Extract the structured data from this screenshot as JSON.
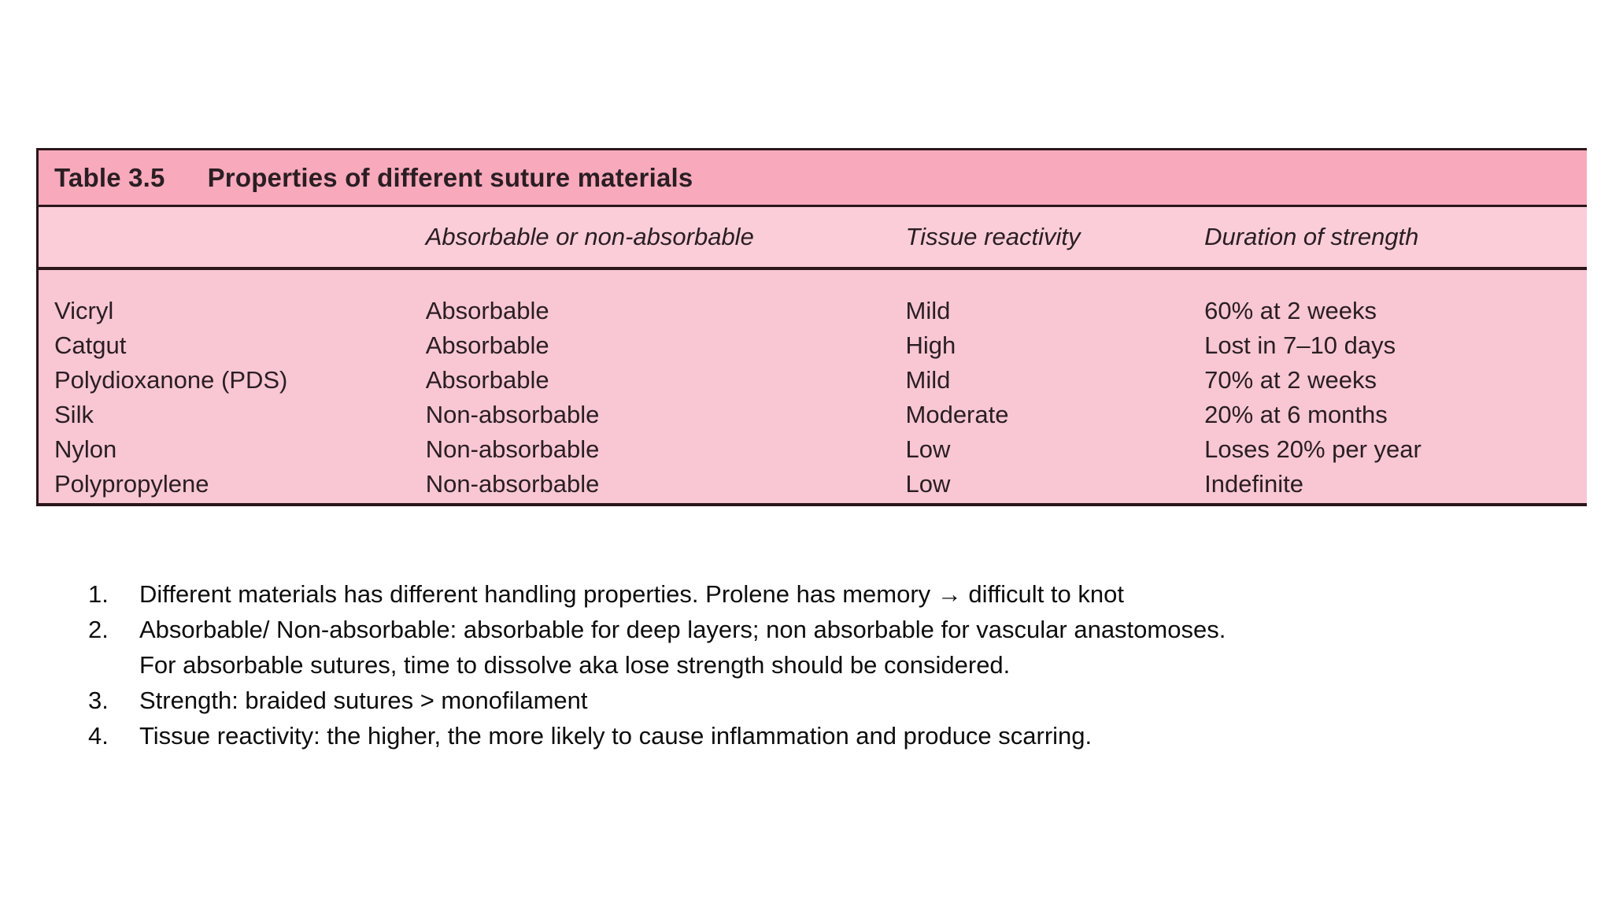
{
  "colors": {
    "title_band": "#f8a9bb",
    "header_band": "#facdd8",
    "body_band": "#f8c7d3",
    "table_border": "#2a161b",
    "table_text": "#2a1e23",
    "note_text": "#0d0d0d"
  },
  "table": {
    "title_label": "Table 3.5",
    "title_text": "Properties of different suture materials",
    "columns": {
      "material": "",
      "absorbable": "Absorbable or non-absorbable",
      "reactivity": "Tissue reactivity",
      "duration": "Duration of strength"
    },
    "rows": [
      {
        "material": "Vicryl",
        "absorbable": "Absorbable",
        "reactivity": "Mild",
        "duration": "60% at 2 weeks"
      },
      {
        "material": "Catgut",
        "absorbable": "Absorbable",
        "reactivity": "High",
        "duration": "Lost in 7–10 days"
      },
      {
        "material": "Polydioxanone (PDS)",
        "absorbable": "Absorbable",
        "reactivity": "Mild",
        "duration": "70% at 2 weeks"
      },
      {
        "material": "Silk",
        "absorbable": "Non-absorbable",
        "reactivity": "Moderate",
        "duration": "20% at 6 months"
      },
      {
        "material": "Nylon",
        "absorbable": "Non-absorbable",
        "reactivity": "Low",
        "duration": "Loses 20% per year"
      },
      {
        "material": "Polypropylene",
        "absorbable": "Non-absorbable",
        "reactivity": "Low",
        "duration": "Indefinite"
      }
    ]
  },
  "notes": [
    {
      "number": "1.",
      "lines": [
        "Different materials has different handling properties. Prolene has memory → difficult to knot"
      ]
    },
    {
      "number": "2.",
      "lines": [
        "Absorbable/ Non-absorbable: absorbable for deep layers; non absorbable for vascular anastomoses.",
        "For absorbable sutures, time to dissolve aka lose strength should be considered."
      ]
    },
    {
      "number": "3.",
      "lines": [
        "Strength: braided sutures > monofilament"
      ]
    },
    {
      "number": "4.",
      "lines": [
        "Tissue reactivity: the higher, the more likely to cause inflammation and produce scarring."
      ]
    }
  ]
}
